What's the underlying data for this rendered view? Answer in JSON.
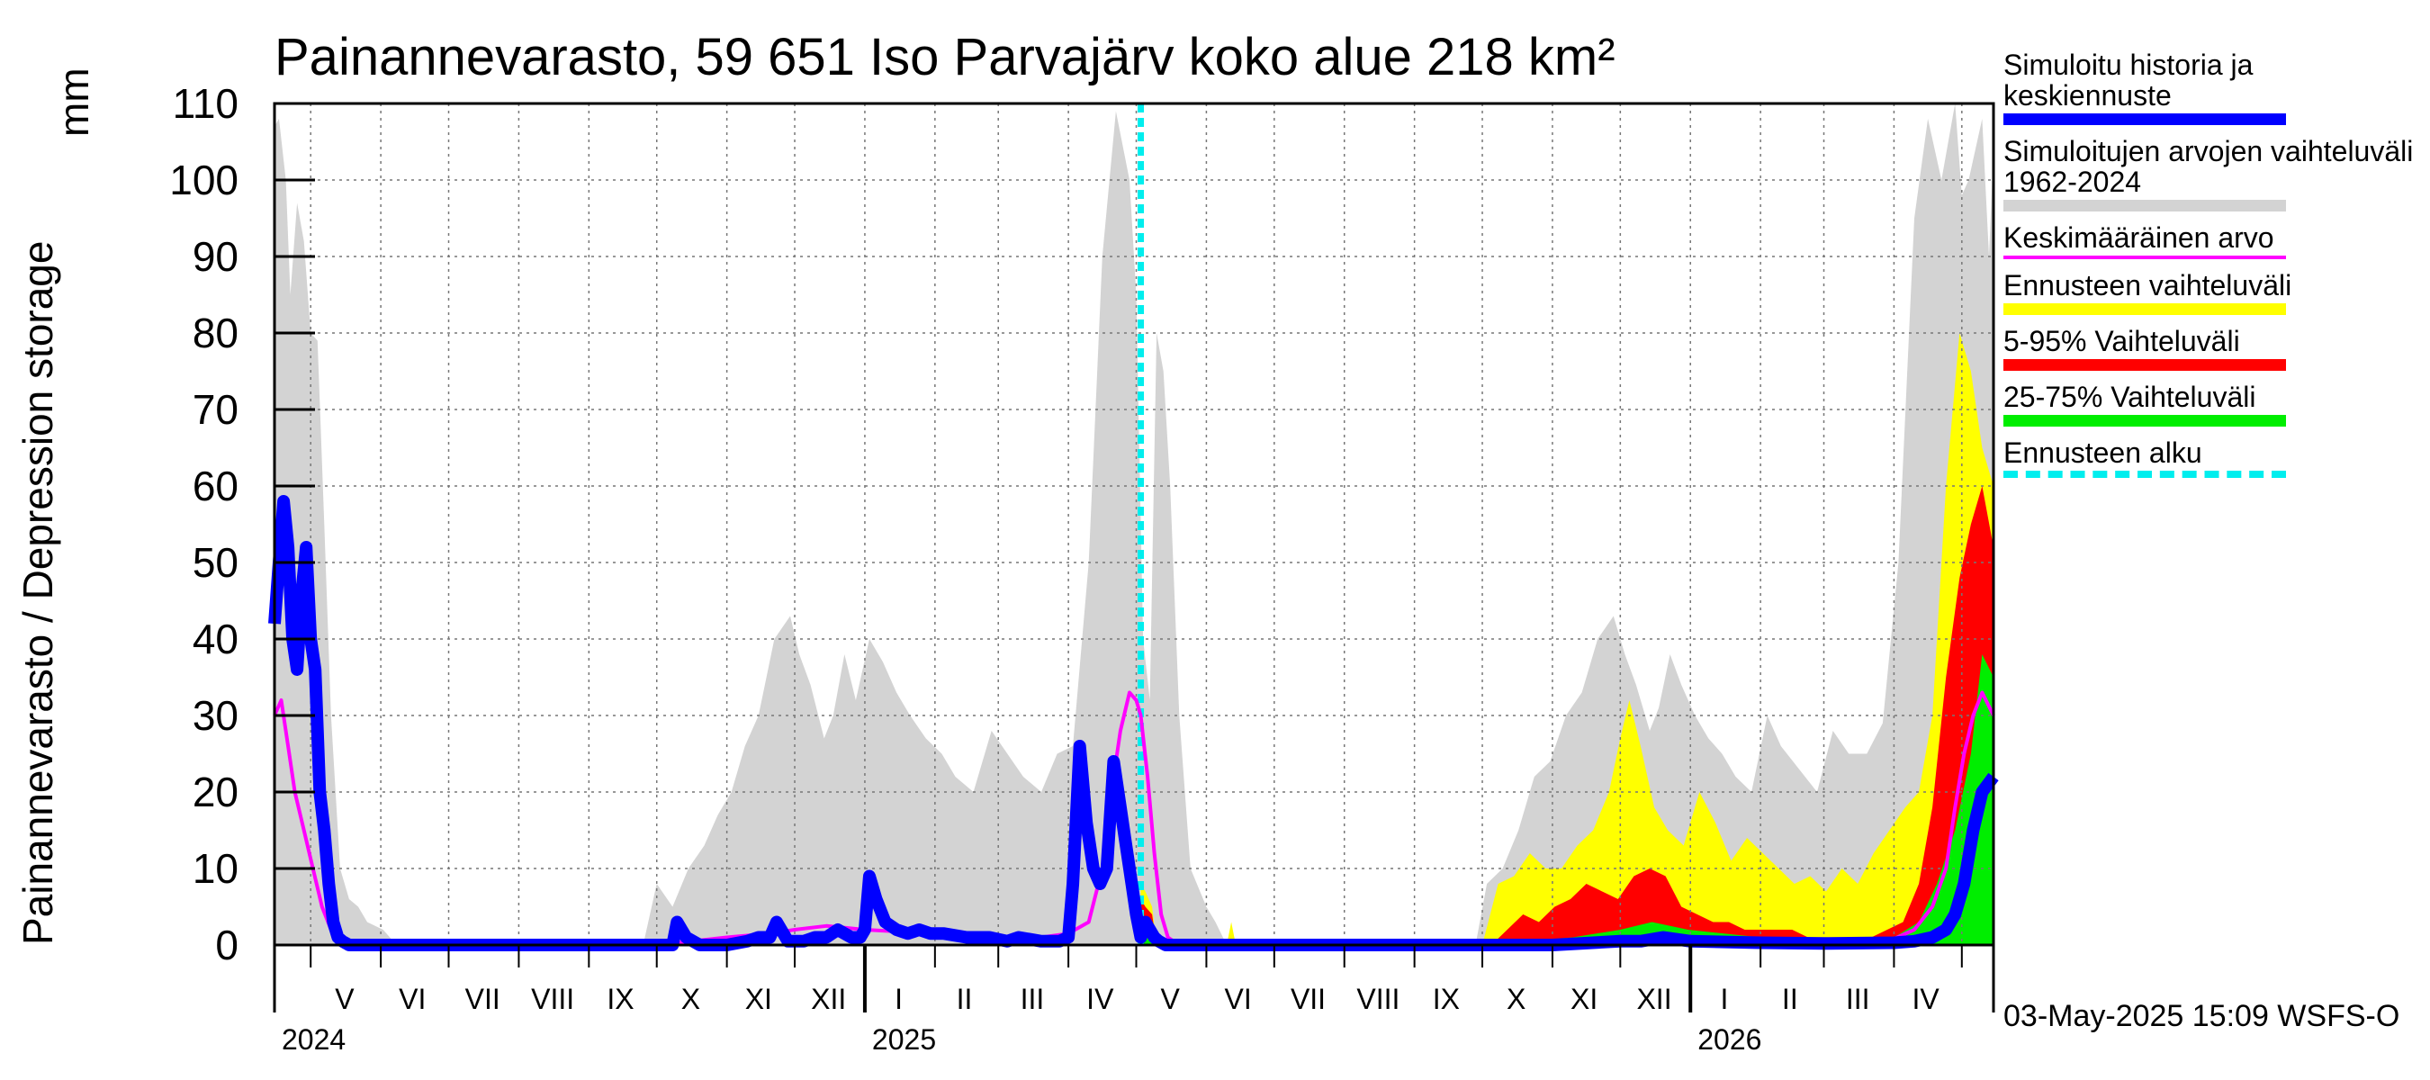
{
  "title": "Painannevarasto, 59 651 Iso Parvajärv koko alue 218 km²",
  "y_axis_label": "Painannevarasto / Depression storage",
  "y_axis_unit": "mm",
  "footer": "03-May-2025 15:09 WSFS-O",
  "legend": [
    {
      "label": "Simuloitu historia ja keskiennuste",
      "color": "#0000ff",
      "style": "solid"
    },
    {
      "label": "Simuloitujen arvojen vaihteluväli 1962-2024",
      "color": "#d3d3d3",
      "style": "solid"
    },
    {
      "label": "Keskimääräinen arvo",
      "color": "#ff00ff",
      "style": "thin"
    },
    {
      "label": "Ennusteen vaihteluväli",
      "color": "#ffff00",
      "style": "solid"
    },
    {
      "label": "5-95% Vaihteluväli",
      "color": "#ff0000",
      "style": "solid"
    },
    {
      "label": "25-75% Vaihteluväli",
      "color": "#00ee00",
      "style": "solid"
    },
    {
      "label": "Ennusteen alku",
      "color": "#00eeee",
      "style": "dashed"
    }
  ],
  "chart_data": {
    "type": "area",
    "title": "Painannevarasto, 59 651 Iso Parvajärv koko alue 218 km²",
    "ylabel": "Painannevarasto / Depression storage",
    "yunit": "mm",
    "ylim": [
      0,
      110
    ],
    "yticks": [
      0,
      10,
      20,
      30,
      40,
      50,
      60,
      70,
      80,
      90,
      100,
      110
    ],
    "xlim": [
      "2024-04-15",
      "2026-05-15"
    ],
    "grid": true,
    "legend_position": "right",
    "month_labels": [
      {
        "label": "V",
        "date": "2024-05-16"
      },
      {
        "label": "VI",
        "date": "2024-06-15"
      },
      {
        "label": "VII",
        "date": "2024-07-16"
      },
      {
        "label": "VIII",
        "date": "2024-08-16"
      },
      {
        "label": "IX",
        "date": "2024-09-15"
      },
      {
        "label": "X",
        "date": "2024-10-16"
      },
      {
        "label": "XI",
        "date": "2024-11-15"
      },
      {
        "label": "XII",
        "date": "2024-12-16"
      },
      {
        "label": "I",
        "date": "2025-01-16"
      },
      {
        "label": "II",
        "date": "2025-02-14"
      },
      {
        "label": "III",
        "date": "2025-03-16"
      },
      {
        "label": "IV",
        "date": "2025-04-15"
      },
      {
        "label": "V",
        "date": "2025-05-16"
      },
      {
        "label": "VI",
        "date": "2025-06-15"
      },
      {
        "label": "VII",
        "date": "2025-07-16"
      },
      {
        "label": "VIII",
        "date": "2025-08-16"
      },
      {
        "label": "IX",
        "date": "2025-09-15"
      },
      {
        "label": "X",
        "date": "2025-10-16"
      },
      {
        "label": "XI",
        "date": "2025-11-15"
      },
      {
        "label": "XII",
        "date": "2025-12-16"
      },
      {
        "label": "I",
        "date": "2026-01-16"
      },
      {
        "label": "II",
        "date": "2026-02-14"
      },
      {
        "label": "III",
        "date": "2026-03-16"
      },
      {
        "label": "IV",
        "date": "2026-04-15"
      }
    ],
    "year_labels": [
      {
        "label": "2024",
        "date": "2024-04-15"
      },
      {
        "label": "2025",
        "date": "2025-01-01"
      },
      {
        "label": "2026",
        "date": "2026-01-01"
      }
    ],
    "forecast_start": "2025-05-03",
    "series": [
      {
        "name": "Simuloitujen arvojen vaihteluväli 1962-2024",
        "kind": "band",
        "color": "#d3d3d3",
        "x": [
          "2024-04-15",
          "2024-04-17",
          "2024-04-20",
          "2024-04-22",
          "2024-04-25",
          "2024-04-28",
          "2024-05-01",
          "2024-05-04",
          "2024-05-07",
          "2024-05-10",
          "2024-05-14",
          "2024-05-18",
          "2024-05-22",
          "2024-05-26",
          "2024-06-02",
          "2024-06-08",
          "2024-09-25",
          "2024-10-01",
          "2024-10-08",
          "2024-10-15",
          "2024-10-22",
          "2024-10-28",
          "2024-11-03",
          "2024-11-09",
          "2024-11-15",
          "2024-11-22",
          "2024-11-29",
          "2024-12-03",
          "2024-12-08",
          "2024-12-14",
          "2024-12-18",
          "2024-12-23",
          "2024-12-28",
          "2025-01-03",
          "2025-01-09",
          "2025-01-15",
          "2025-01-21",
          "2025-01-28",
          "2025-02-04",
          "2025-02-10",
          "2025-02-18",
          "2025-02-26",
          "2025-03-05",
          "2025-03-12",
          "2025-03-20",
          "2025-03-27",
          "2025-04-03",
          "2025-04-10",
          "2025-04-16",
          "2025-04-22",
          "2025-04-28",
          "2025-05-01",
          "2025-05-04",
          "2025-05-07",
          "2025-05-10",
          "2025-05-13",
          "2025-05-16",
          "2025-05-20",
          "2025-05-25",
          "2025-06-01",
          "2025-06-05",
          "2025-06-10",
          "2025-09-28",
          "2025-10-03",
          "2025-10-10",
          "2025-10-17",
          "2025-10-24",
          "2025-10-31",
          "2025-11-07",
          "2025-11-14",
          "2025-11-21",
          "2025-11-28",
          "2025-12-03",
          "2025-12-08",
          "2025-12-14",
          "2025-12-18",
          "2025-12-23",
          "2025-12-28",
          "2026-01-03",
          "2026-01-09",
          "2026-01-15",
          "2026-01-21",
          "2026-01-28",
          "2026-02-04",
          "2026-02-10",
          "2026-02-18",
          "2026-02-26",
          "2026-03-05",
          "2026-03-12",
          "2026-03-20",
          "2026-03-27",
          "2026-04-03",
          "2026-04-10",
          "2026-04-16",
          "2026-04-22",
          "2026-04-28",
          "2026-05-01",
          "2026-05-04",
          "2026-05-07",
          "2026-05-10",
          "2026-05-13",
          "2026-05-15"
        ],
        "values": [
          107,
          108,
          100,
          85,
          97,
          92,
          80,
          79,
          55,
          30,
          10,
          6,
          5,
          3,
          2,
          0,
          0,
          8,
          5,
          10,
          13,
          17,
          20,
          26,
          30,
          40,
          43,
          38,
          34,
          27,
          30,
          38,
          32,
          40,
          37,
          33,
          30,
          27,
          25,
          22,
          20,
          28,
          25,
          22,
          20,
          25,
          26,
          50,
          90,
          109,
          100,
          85,
          40,
          32,
          80,
          75,
          60,
          30,
          10,
          5,
          3,
          0,
          0,
          8,
          10,
          15,
          22,
          24,
          30,
          33,
          40,
          43,
          38,
          34,
          28,
          31,
          38,
          34,
          30,
          27,
          25,
          22,
          20,
          30,
          26,
          23,
          20,
          28,
          25,
          25,
          29,
          50,
          95,
          108,
          100,
          110,
          98,
          100,
          104,
          108,
          90,
          104
        ]
      },
      {
        "name": "Ennusteen vaihteluväli",
        "kind": "band",
        "color": "#ffff00",
        "x": [
          "2025-05-03",
          "2025-05-05",
          "2025-05-08",
          "2025-05-10",
          "2025-06-10",
          "2025-06-12",
          "2025-06-14",
          "2025-10-01",
          "2025-10-08",
          "2025-10-15",
          "2025-10-22",
          "2025-10-29",
          "2025-11-05",
          "2025-11-12",
          "2025-11-19",
          "2025-11-26",
          "2025-12-01",
          "2025-12-05",
          "2025-12-10",
          "2025-12-16",
          "2025-12-22",
          "2025-12-29",
          "2026-01-05",
          "2026-01-12",
          "2026-01-19",
          "2026-01-26",
          "2026-02-02",
          "2026-02-09",
          "2026-02-16",
          "2026-02-23",
          "2026-03-02",
          "2026-03-09",
          "2026-03-16",
          "2026-03-23",
          "2026-03-30",
          "2026-04-06",
          "2026-04-12",
          "2026-04-18",
          "2026-04-24",
          "2026-04-30",
          "2026-05-05",
          "2026-05-10",
          "2026-05-15"
        ],
        "values": [
          8,
          7,
          5,
          0,
          0,
          3,
          0,
          0,
          8,
          9,
          12,
          10,
          10,
          13,
          15,
          20,
          27,
          32,
          26,
          18,
          15,
          13,
          20,
          16,
          11,
          14,
          12,
          10,
          8,
          9,
          7,
          10,
          8,
          12,
          15,
          18,
          20,
          30,
          60,
          80,
          75,
          65,
          60
        ]
      },
      {
        "name": "5-95% Vaihteluväli",
        "kind": "band",
        "color": "#ff0000",
        "x": [
          "2025-05-03",
          "2025-05-05",
          "2025-05-08",
          "2025-05-10",
          "2025-10-05",
          "2025-10-12",
          "2025-10-19",
          "2025-10-26",
          "2025-11-02",
          "2025-11-09",
          "2025-11-16",
          "2025-11-23",
          "2025-11-30",
          "2025-12-07",
          "2025-12-14",
          "2025-12-21",
          "2025-12-28",
          "2026-01-04",
          "2026-01-11",
          "2026-01-18",
          "2026-01-25",
          "2026-02-01",
          "2026-02-08",
          "2026-02-15",
          "2026-02-22",
          "2026-03-01",
          "2026-03-08",
          "2026-03-15",
          "2026-03-22",
          "2026-03-29",
          "2026-04-05",
          "2026-04-12",
          "2026-04-18",
          "2026-04-24",
          "2026-04-30",
          "2026-05-05",
          "2026-05-10",
          "2026-05-15"
        ],
        "values": [
          6,
          5,
          4,
          0,
          0,
          2,
          4,
          3,
          5,
          6,
          8,
          7,
          6,
          9,
          10,
          9,
          5,
          4,
          3,
          3,
          2,
          2,
          2,
          2,
          1,
          1,
          1,
          1,
          1,
          2,
          3,
          8,
          18,
          35,
          48,
          55,
          60,
          52
        ]
      },
      {
        "name": "25-75% Vaihteluväli",
        "kind": "band",
        "color": "#00ee00",
        "x": [
          "2025-05-03",
          "2025-05-06",
          "2025-05-09",
          "2025-10-20",
          "2025-11-10",
          "2025-12-01",
          "2025-12-15",
          "2025-12-31",
          "2026-02-01",
          "2026-03-01",
          "2026-04-01",
          "2026-04-12",
          "2026-04-20",
          "2026-04-28",
          "2026-05-05",
          "2026-05-10",
          "2026-05-15"
        ],
        "values": [
          2,
          1.5,
          0.5,
          0.5,
          1,
          2,
          3,
          2,
          1,
          1,
          1,
          3,
          8,
          15,
          25,
          38,
          35
        ]
      },
      {
        "name": "Keskimääräinen arvo",
        "kind": "line",
        "color": "#ff00ff",
        "x": [
          "2024-04-15",
          "2024-04-18",
          "2024-04-21",
          "2024-04-24",
          "2024-04-28",
          "2024-05-02",
          "2024-05-06",
          "2024-05-10",
          "2024-05-14",
          "2024-05-18",
          "2024-06-01",
          "2024-10-01",
          "2024-11-01",
          "2024-11-20",
          "2024-12-01",
          "2024-12-15",
          "2025-01-01",
          "2025-02-01",
          "2025-03-01",
          "2025-03-20",
          "2025-04-01",
          "2025-04-10",
          "2025-04-16",
          "2025-04-20",
          "2025-04-24",
          "2025-04-28",
          "2025-05-01",
          "2025-05-03",
          "2025-05-06",
          "2025-05-09",
          "2025-05-12",
          "2025-05-15",
          "2025-05-20",
          "2025-06-01",
          "2025-10-01",
          "2025-11-01",
          "2025-12-01",
          "2025-12-15",
          "2026-01-01",
          "2026-02-01",
          "2026-03-01",
          "2026-04-01",
          "2026-04-10",
          "2026-04-18",
          "2026-04-24",
          "2026-04-28",
          "2026-05-02",
          "2026-05-06",
          "2026-05-10",
          "2026-05-15"
        ],
        "values": [
          30,
          32,
          26,
          20,
          15,
          10,
          5,
          2,
          0.5,
          0,
          0,
          0,
          1,
          1.5,
          2,
          2.5,
          2,
          1.5,
          1,
          1,
          1.5,
          3,
          10,
          20,
          28,
          33,
          32,
          30,
          22,
          12,
          4,
          1,
          0,
          0,
          0,
          0.5,
          1,
          1,
          1,
          0.8,
          0.6,
          0.8,
          2,
          5,
          10,
          18,
          25,
          30,
          33,
          30
        ]
      },
      {
        "name": "Simuloitu historia ja keskiennuste",
        "kind": "line",
        "color": "#0000ff",
        "x": [
          "2024-04-15",
          "2024-04-17",
          "2024-04-19",
          "2024-04-21",
          "2024-04-23",
          "2024-04-25",
          "2024-04-27",
          "2024-04-29",
          "2024-05-01",
          "2024-05-03",
          "2024-05-05",
          "2024-05-07",
          "2024-05-09",
          "2024-05-11",
          "2024-05-13",
          "2024-05-15",
          "2024-05-18",
          "2024-06-01",
          "2024-10-08",
          "2024-10-10",
          "2024-10-14",
          "2024-10-20",
          "2024-11-01",
          "2024-11-10",
          "2024-11-15",
          "2024-11-20",
          "2024-11-23",
          "2024-11-28",
          "2024-12-05",
          "2024-12-10",
          "2024-12-15",
          "2024-12-20",
          "2024-12-26",
          "2024-12-30",
          "2025-01-01",
          "2025-01-03",
          "2025-01-06",
          "2025-01-10",
          "2025-01-15",
          "2025-01-20",
          "2025-01-25",
          "2025-01-30",
          "2025-02-05",
          "2025-02-15",
          "2025-02-25",
          "2025-03-05",
          "2025-03-10",
          "2025-03-20",
          "2025-03-28",
          "2025-04-01",
          "2025-04-03",
          "2025-04-06",
          "2025-04-09",
          "2025-04-12",
          "2025-04-15",
          "2025-04-18",
          "2025-04-21",
          "2025-04-23",
          "2025-04-26",
          "2025-04-29",
          "2025-05-01",
          "2025-05-03",
          "2025-05-05",
          "2025-05-07",
          "2025-05-09",
          "2025-05-11",
          "2025-05-14",
          "2025-05-18",
          "2025-06-01",
          "2025-10-01",
          "2025-11-01",
          "2025-12-01",
          "2025-12-10",
          "2025-12-20",
          "2026-01-01",
          "2026-02-01",
          "2026-03-01",
          "2026-04-01",
          "2026-04-10",
          "2026-04-18",
          "2026-04-24",
          "2026-04-28",
          "2026-05-02",
          "2026-05-06",
          "2026-05-10",
          "2026-05-15"
        ],
        "values": [
          42,
          50,
          58,
          52,
          40,
          36,
          46,
          52,
          40,
          36,
          20,
          15,
          8,
          3,
          1,
          0.5,
          0,
          0,
          0,
          3,
          1,
          0,
          0,
          0.5,
          1,
          1,
          3,
          0.5,
          0.5,
          1,
          1,
          2,
          1,
          1,
          2,
          9,
          6,
          3,
          2,
          1.5,
          2,
          1.5,
          1.5,
          1,
          1,
          0.5,
          1,
          0.5,
          0.5,
          1,
          8,
          26,
          16,
          10,
          8,
          10,
          24,
          20,
          14,
          8,
          4,
          1,
          3,
          2,
          1,
          0.5,
          0,
          0,
          0,
          0,
          0,
          0.5,
          0.5,
          1,
          0.5,
          0.3,
          0.2,
          0.3,
          0.5,
          1,
          2,
          4,
          8,
          15,
          20,
          22
        ]
      }
    ]
  }
}
